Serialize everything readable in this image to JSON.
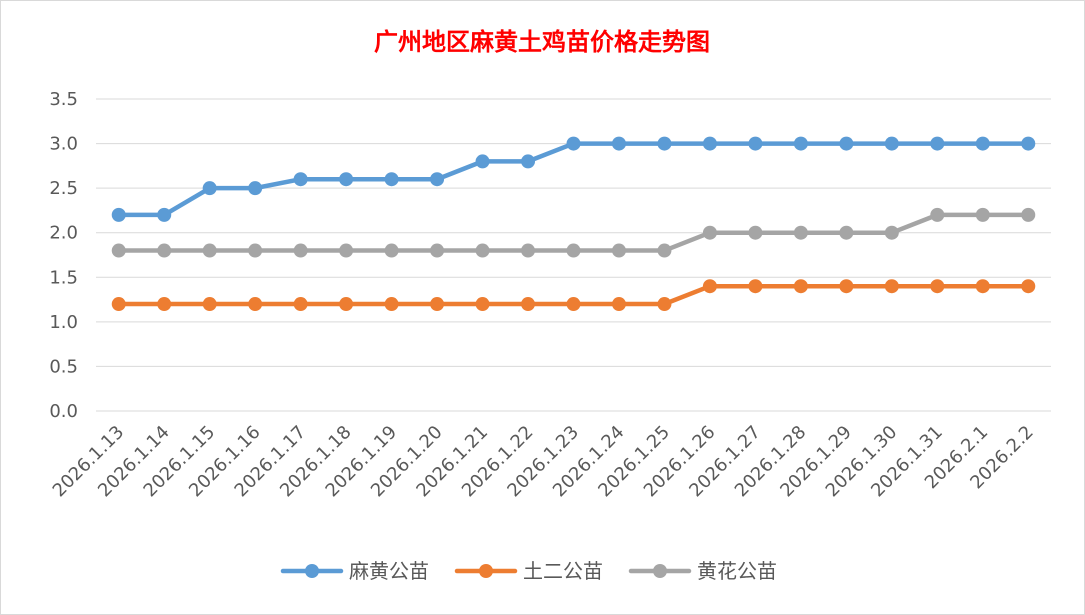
{
  "chart_data": {
    "type": "line",
    "title": "广州地区麻黄土鸡苗价格走势图",
    "xlabel": "",
    "ylabel": "",
    "ylim": [
      0,
      3.5
    ],
    "yticks": [
      "0.0",
      "0.5",
      "1.0",
      "1.5",
      "2.0",
      "2.5",
      "3.0",
      "3.5"
    ],
    "grid": true,
    "legend_position": "bottom",
    "categories": [
      "2026.1.13",
      "2026.1.14",
      "2026.1.15",
      "2026.1.16",
      "2026.1.17",
      "2026.1.18",
      "2026.1.19",
      "2026.1.20",
      "2026.1.21",
      "2026.1.22",
      "2026.1.23",
      "2026.1.24",
      "2026.1.25",
      "2026.1.26",
      "2026.1.27",
      "2026.1.28",
      "2026.1.29",
      "2026.1.30",
      "2026.1.31",
      "2026.2.1",
      "2026.2.2"
    ],
    "series": [
      {
        "name": "麻黄公苗",
        "color": "#5b9bd5",
        "values": [
          2.2,
          2.2,
          2.5,
          2.5,
          2.6,
          2.6,
          2.6,
          2.6,
          2.8,
          2.8,
          3.0,
          3.0,
          3.0,
          3.0,
          3.0,
          3.0,
          3.0,
          3.0,
          3.0,
          3.0,
          3.0
        ]
      },
      {
        "name": "土二公苗",
        "color": "#ed7d31",
        "values": [
          1.2,
          1.2,
          1.2,
          1.2,
          1.2,
          1.2,
          1.2,
          1.2,
          1.2,
          1.2,
          1.2,
          1.2,
          1.2,
          1.4,
          1.4,
          1.4,
          1.4,
          1.4,
          1.4,
          1.4,
          1.4
        ]
      },
      {
        "name": "黄花公苗",
        "color": "#a5a5a5",
        "values": [
          1.8,
          1.8,
          1.8,
          1.8,
          1.8,
          1.8,
          1.8,
          1.8,
          1.8,
          1.8,
          1.8,
          1.8,
          1.8,
          2.0,
          2.0,
          2.0,
          2.0,
          2.0,
          2.2,
          2.2,
          2.2
        ]
      }
    ]
  }
}
